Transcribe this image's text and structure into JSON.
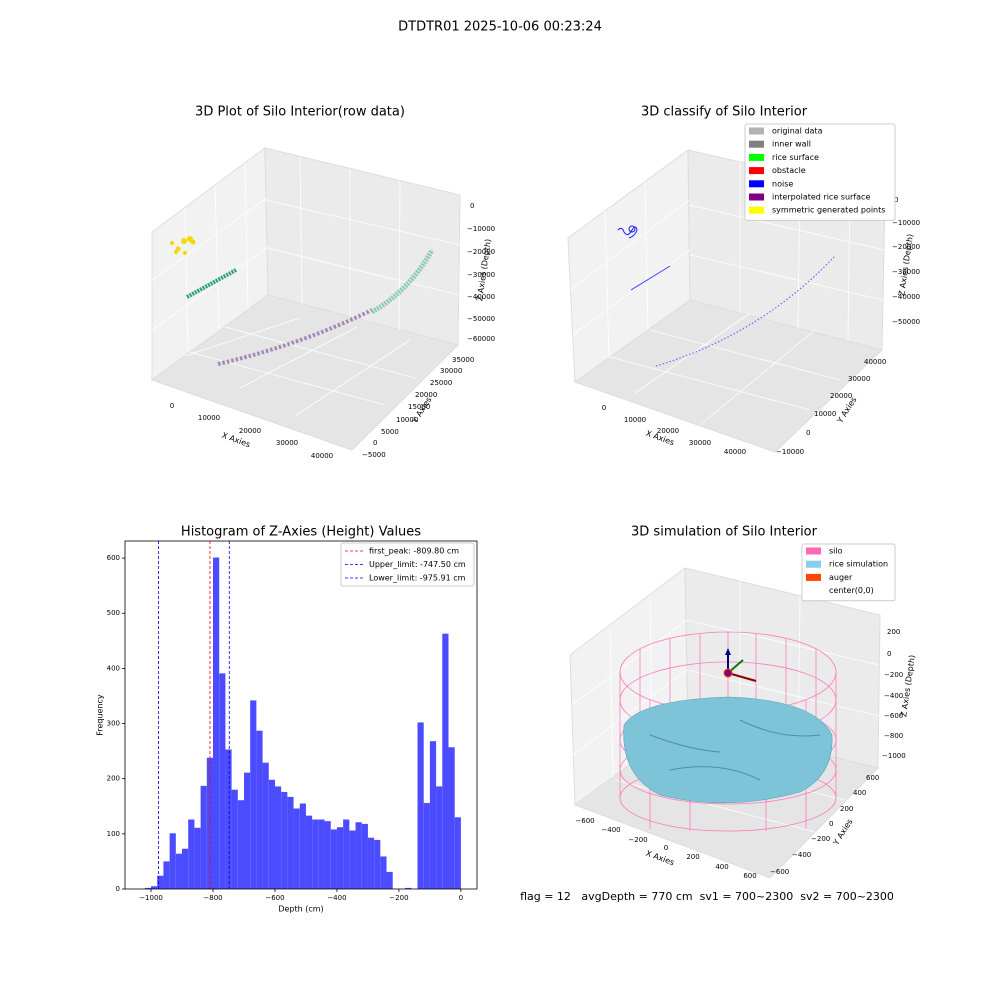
{
  "title": "DTDTR01 2025-10-06 00:23:24",
  "panels": [
    {
      "title": "3D Plot of Silo Interior(row data)",
      "x_label": "X Axies",
      "y_label": "Y Axies",
      "z_label": "Z Axies (Depth)",
      "x_ticks": [
        "0",
        "10000",
        "20000",
        "30000",
        "40000"
      ],
      "y_ticks": [
        "−5000",
        "0",
        "5000",
        "10000",
        "15000",
        "20000",
        "25000",
        "30000",
        "35000"
      ],
      "z_ticks": [
        "0",
        "−10000",
        "−20000",
        "−30000",
        "−40000",
        "−50000",
        "−60000"
      ]
    },
    {
      "title": "3D classify of Silo Interior",
      "x_label": "X Axies",
      "y_label": "Y Axies",
      "z_label": "Z Axies (Depth)",
      "x_ticks": [
        "0",
        "10000",
        "20000",
        "30000",
        "40000"
      ],
      "y_ticks": [
        "−10000",
        "0",
        "10000",
        "20000",
        "30000",
        "40000"
      ],
      "z_ticks": [
        "0",
        "−10000",
        "−20000",
        "−30000",
        "−40000",
        "−50000"
      ],
      "legend": [
        {
          "name": "original data",
          "color": "#b3b3b3"
        },
        {
          "name": "inner wall",
          "color": "#808080"
        },
        {
          "name": "rice surface",
          "color": "#00ff00"
        },
        {
          "name": "obstacle",
          "color": "#ff0000"
        },
        {
          "name": "noise",
          "color": "#0000ff"
        },
        {
          "name": "interpolated rice surface",
          "color": "#800080"
        },
        {
          "name": "symmetric generated points",
          "color": "#ffff00"
        }
      ]
    },
    {
      "title": "3D simulation of Silo Interior",
      "x_label": "X Axies",
      "y_label": "Y Axies",
      "z_label": "Z Axies (Depth)",
      "x_ticks": [
        "−600",
        "−400",
        "−200",
        "0",
        "200",
        "400",
        "600"
      ],
      "y_ticks": [
        "−600",
        "−400",
        "−200",
        "0",
        "200",
        "400",
        "600"
      ],
      "z_ticks": [
        "200",
        "0",
        "−200",
        "−400",
        "−600",
        "−800",
        "−1000"
      ],
      "legend": [
        {
          "name": "silo",
          "color": "#ff69b4"
        },
        {
          "name": "rice simulation",
          "color": "#87ceeb"
        },
        {
          "name": "auger",
          "color": "#ff4500"
        },
        {
          "name": "center(0,0)",
          "color": "#ffffff"
        }
      ]
    }
  ],
  "chart_data": {
    "type": "histogram",
    "title": "Histogram of Z-Axies (Height) Values",
    "x_label": "Depth (cm)",
    "y_label": "Frequency",
    "bins": [
      -1020,
      -1000,
      -980,
      -960,
      -940,
      -920,
      -900,
      -880,
      -860,
      -840,
      -820,
      -800,
      -780,
      -760,
      -740,
      -720,
      -700,
      -680,
      -660,
      -640,
      -620,
      -600,
      -580,
      -560,
      -540,
      -520,
      -500,
      -480,
      -460,
      -440,
      -420,
      -400,
      -380,
      -360,
      -340,
      -320,
      -300,
      -280,
      -260,
      -240,
      -220,
      -200,
      -180,
      -160,
      -140,
      -120,
      -100,
      -80,
      -60,
      -40,
      -20,
      0
    ],
    "values": [
      2,
      5,
      24,
      50,
      101,
      64,
      73,
      126,
      111,
      187,
      238,
      601,
      391,
      253,
      180,
      161,
      211,
      342,
      287,
      229,
      198,
      186,
      176,
      167,
      146,
      155,
      133,
      126,
      126,
      123,
      108,
      112,
      126,
      106,
      121,
      118,
      93,
      89,
      59,
      31,
      0,
      0,
      2,
      0,
      302,
      156,
      268,
      186,
      463,
      257,
      130
    ],
    "color": "#4b4bff",
    "xlim": [
      -1084,
      52
    ],
    "ylim": [
      0,
      631
    ],
    "xticks": [
      {
        "value": -1000,
        "label": "−1000"
      },
      {
        "value": -800,
        "label": "−800"
      },
      {
        "value": -600,
        "label": "−600"
      },
      {
        "value": -400,
        "label": "−400"
      },
      {
        "value": -200,
        "label": "−200"
      },
      0
    ],
    "yticks": [
      0,
      100,
      200,
      300,
      400,
      500,
      600
    ],
    "vlines": [
      {
        "label": "first_peak: -809.80 cm",
        "value": -809.8,
        "color": "#ff0000"
      },
      {
        "label": "Upper_limit: -747.50 cm",
        "value": -747.5,
        "color": "#0000ff"
      },
      {
        "label": "Lower_limit: -975.91 cm",
        "value": -975.91,
        "color": "#0000ff"
      }
    ],
    "legend": "upper right"
  },
  "status": "flag = 12   avgDepth = 770 cm  sv1 = 700~2300  sv2 = 700~2300"
}
